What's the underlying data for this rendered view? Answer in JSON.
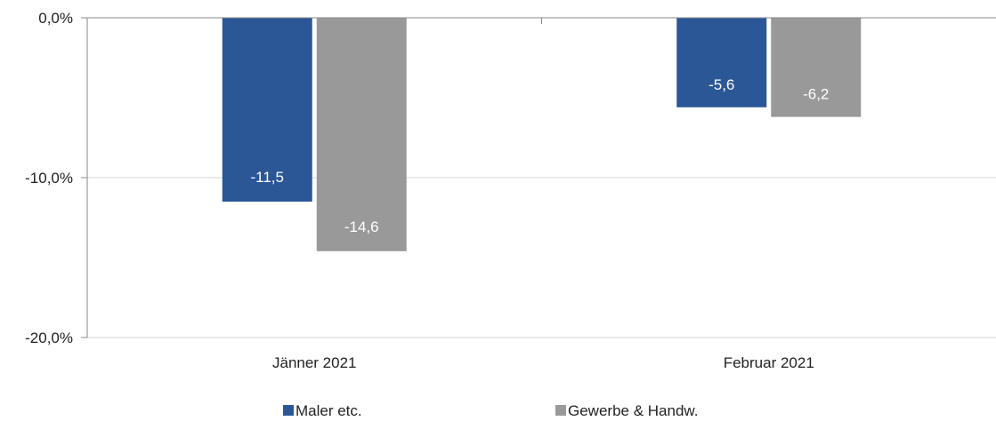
{
  "chart_data": {
    "type": "bar",
    "categories": [
      "Jänner 2021",
      "Februar 2021"
    ],
    "series": [
      {
        "name": "Maler etc.",
        "values": [
          -11.5,
          -5.6
        ],
        "labels": [
          "-11,5",
          "-5,6"
        ],
        "color": "#2b5797"
      },
      {
        "name": "Gewerbe & Handw.",
        "values": [
          -14.6,
          -6.2
        ],
        "labels": [
          "-14,6",
          "-6,2"
        ],
        "color": "#999999"
      }
    ],
    "ylim": [
      -20,
      0
    ],
    "yticks": [
      0,
      -10,
      -20
    ],
    "ytick_labels": [
      "0,0%",
      "-10,0%",
      "-20,0%"
    ],
    "grid": true,
    "legend": "bottom-center"
  }
}
